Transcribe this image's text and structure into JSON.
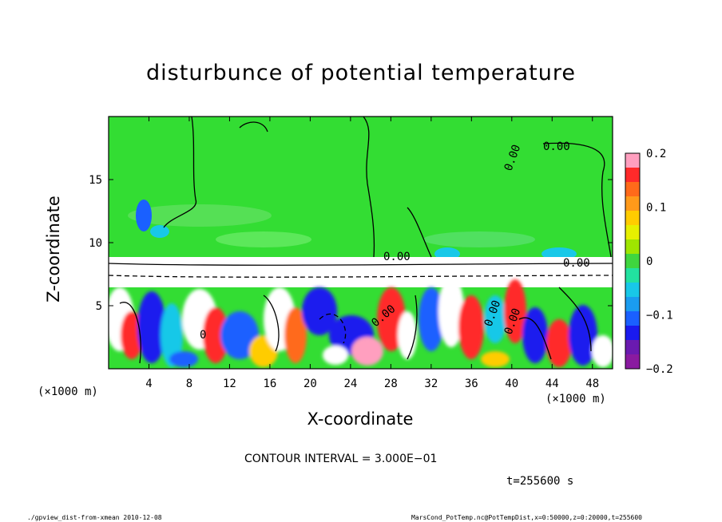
{
  "chart_data": {
    "type": "heatmap",
    "title": "disturbunce of potential temperature",
    "xlabel": "X-coordinate",
    "ylabel": "Z-coordinate",
    "x_unit_left": "(×1000 m)",
    "x_unit_right": "(×1000 m)",
    "xlim": [
      0,
      50
    ],
    "ylim": [
      0,
      20
    ],
    "xticks": [
      4,
      8,
      12,
      16,
      20,
      24,
      28,
      32,
      36,
      40,
      44,
      48
    ],
    "yticks": [
      5,
      10,
      15
    ],
    "colorbar": {
      "ticks": [
        0.2,
        0.1,
        0,
        -0.1,
        -0.2
      ],
      "tick_labels": [
        "0.2",
        "0.1",
        "0",
        "−0.1",
        "−0.2"
      ],
      "range": [
        -0.2,
        0.2
      ],
      "colors": [
        "#ff9fbf",
        "#ff2a2a",
        "#ff6a1a",
        "#ff9a1a",
        "#ffcc00",
        "#e6f000",
        "#9fe600",
        "#3fd63f",
        "#22e2a0",
        "#18c8e8",
        "#1a9cf0",
        "#1a60ff",
        "#1a1aee",
        "#6a1ab0",
        "#8a1aa0"
      ]
    },
    "contour_labels": [
      "0.00",
      "0.00",
      "0.00",
      "0.00",
      "0.00",
      "0.00",
      "0.00",
      "0"
    ],
    "contour_interval": "CONTOUR INTERVAL = 3.000E−01",
    "time": "t=255600 s"
  },
  "footer": {
    "left": "./gpview_dist-from-xmean  2010-12-08",
    "right": "MarsCond_PotTemp.nc@PotTempDist,x=0:50000,z=0:20000,t=255600"
  },
  "colors": {
    "upper_field": "#33dd33",
    "warm": "#ff2a2a",
    "cold": "#1a1aee",
    "neutral": "#ffffff"
  }
}
